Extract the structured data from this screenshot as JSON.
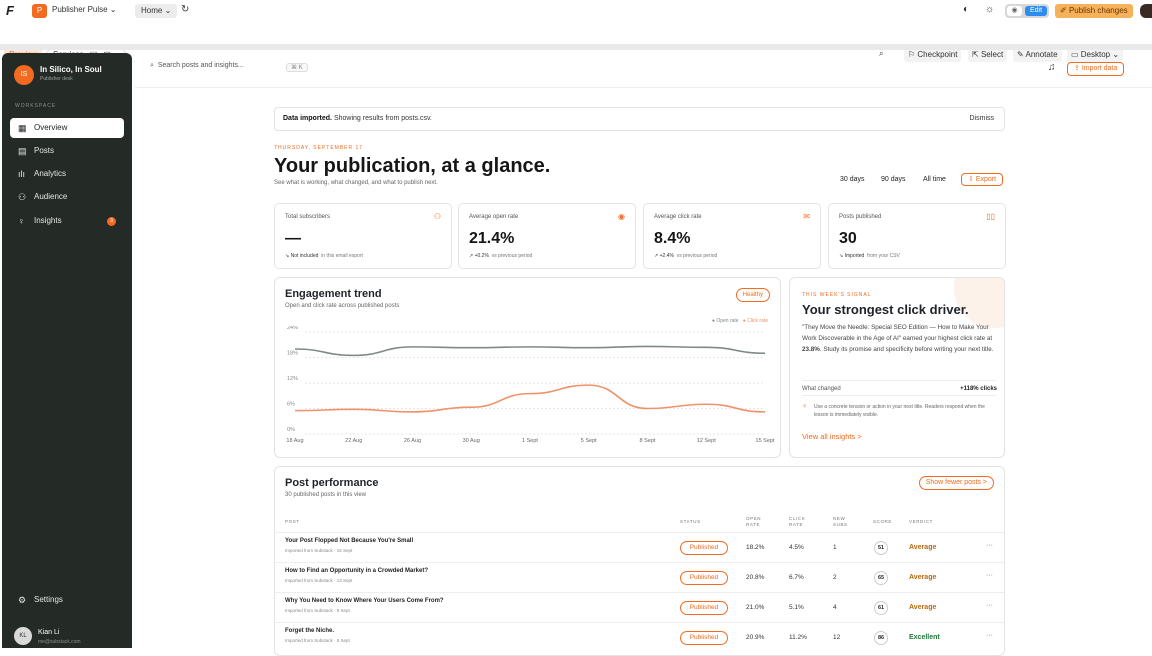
{
  "topbar": {
    "logo": "F",
    "project_initial": "P",
    "project_name": "Publisher Pulse ⌄",
    "page_select": "Home ⌄",
    "publish": "Publish changes",
    "edit": "Edit"
  },
  "subbar": {
    "preview": "Preview",
    "services": "Services",
    "checkpoint": "Checkpoint",
    "select": "Select",
    "annotate": "Annotate",
    "device": "Desktop ⌄"
  },
  "sidebar": {
    "initials": "IS",
    "name": "In Silico, In Soul",
    "sub": "Publisher desk",
    "section": "WORKSPACE",
    "items": [
      {
        "label": "Overview",
        "icon": "grid-icon"
      },
      {
        "label": "Posts",
        "icon": "file-icon"
      },
      {
        "label": "Analytics",
        "icon": "bar-chart-icon"
      },
      {
        "label": "Audience",
        "icon": "users-icon"
      },
      {
        "label": "Insights",
        "icon": "bulb-icon",
        "badge": "3"
      }
    ],
    "settings": "Settings",
    "user": {
      "initials": "KL",
      "name": "Kian Li",
      "email": "me@substack.com"
    }
  },
  "header": {
    "search_placeholder": "Search posts and insights...",
    "shortcut": "⌘ K",
    "import": "Import data"
  },
  "banner": {
    "bold": "Data imported.",
    "text": " Showing results from posts.csv.",
    "dismiss": "Dismiss"
  },
  "intro": {
    "date": "THURSDAY, SEPTEMBER 17",
    "title": "Your publication, at a glance.",
    "subtitle": "See what is working, what changed, and what to publish next.",
    "ranges": [
      "30 days",
      "90 days",
      "All time"
    ],
    "export": "Export"
  },
  "kpis": [
    {
      "label": "Total subscribers",
      "value": "—",
      "trend": "↘ Not included",
      "note": "in this email export",
      "icon": "users-icon"
    },
    {
      "label": "Average open rate",
      "value": "21.4%",
      "trend": "↗ +0.2%",
      "note": "vs previous period",
      "icon": "eye-icon"
    },
    {
      "label": "Average click rate",
      "value": "8.4%",
      "trend": "↗ +2.4%",
      "note": "vs previous period",
      "icon": "mail-icon"
    },
    {
      "label": "Posts published",
      "value": "30",
      "trend": "↘ Imported",
      "note": "from your CSV",
      "icon": "book-icon"
    }
  ],
  "trend": {
    "title": "Engagement trend",
    "subtitle": "Open and click rate across published posts",
    "status": "Healthy",
    "legend_open": "● Open rate",
    "legend_click": "● Click rate"
  },
  "chart_data": {
    "type": "line",
    "x": [
      "18 Aug",
      "22 Aug",
      "26 Aug",
      "30 Aug",
      "1 Sept",
      "5 Sept",
      "8 Sept",
      "12 Sept",
      "15 Sept"
    ],
    "yticks": [
      "24%",
      "18%",
      "12%",
      "6%",
      "0%"
    ],
    "ylim": [
      0,
      24
    ],
    "series": [
      {
        "name": "Open rate",
        "color": "#7e8a88",
        "values": [
          20,
          18.5,
          20.5,
          20.3,
          20.5,
          20.3,
          20.6,
          20.4,
          19
        ]
      },
      {
        "name": "Click rate",
        "color": "#f0916a",
        "values": [
          5.5,
          5.8,
          5.2,
          6.3,
          9.5,
          11.5,
          6,
          7,
          5.2
        ]
      }
    ]
  },
  "signal": {
    "label": "THIS WEEK'S SIGNAL",
    "title": "Your strongest click driver.",
    "body_1": "\"They Move the Needle: Special SEO Edition — How to Make Your Work Discoverable in the Age of AI\" earned your highest click rate at ",
    "body_bold": "23.8%",
    "body_2": ". Study its promise and specificity before writing your next title.",
    "changed_label": "What changed",
    "changed_value": "+118% clicks",
    "tip": "Use a concrete tension or action in your next title. Readers respond when the lesson is immediately visible.",
    "link": "View all insights >"
  },
  "perf": {
    "title": "Post performance",
    "subtitle": "30 published posts in this view",
    "toggle": "Show fewer posts >",
    "headers": {
      "post": "POST",
      "status": "STATUS",
      "open": "OPEN RATE",
      "click": "CLICK RATE",
      "subs": "NEW SUBS",
      "score": "SCORE",
      "verdict": "VERDICT"
    },
    "rows": [
      {
        "title": "Your Post Flopped Not Because You're Small",
        "source": "Imported from Substack · 15 Sept",
        "status": "Published",
        "open": "18.2%",
        "click": "4.5%",
        "subs": "1",
        "score": "51",
        "verdict": "Average"
      },
      {
        "title": "How to Find an Opportunity in a Crowded Market?",
        "source": "Imported from Substack · 13 Sept",
        "status": "Published",
        "open": "20.8%",
        "click": "6.7%",
        "subs": "2",
        "score": "65",
        "verdict": "Average"
      },
      {
        "title": "Why You Need to Know Where Your Users Come From?",
        "source": "Imported from Substack · 9 Sept",
        "status": "Published",
        "open": "21.0%",
        "click": "5.1%",
        "subs": "4",
        "score": "61",
        "verdict": "Average"
      },
      {
        "title": "Forget the Niche.",
        "source": "Imported from Substack · 5 Sept",
        "status": "Published",
        "open": "20.9%",
        "click": "11.2%",
        "subs": "12",
        "score": "86",
        "verdict": "Excellent"
      }
    ],
    "more": "···"
  }
}
